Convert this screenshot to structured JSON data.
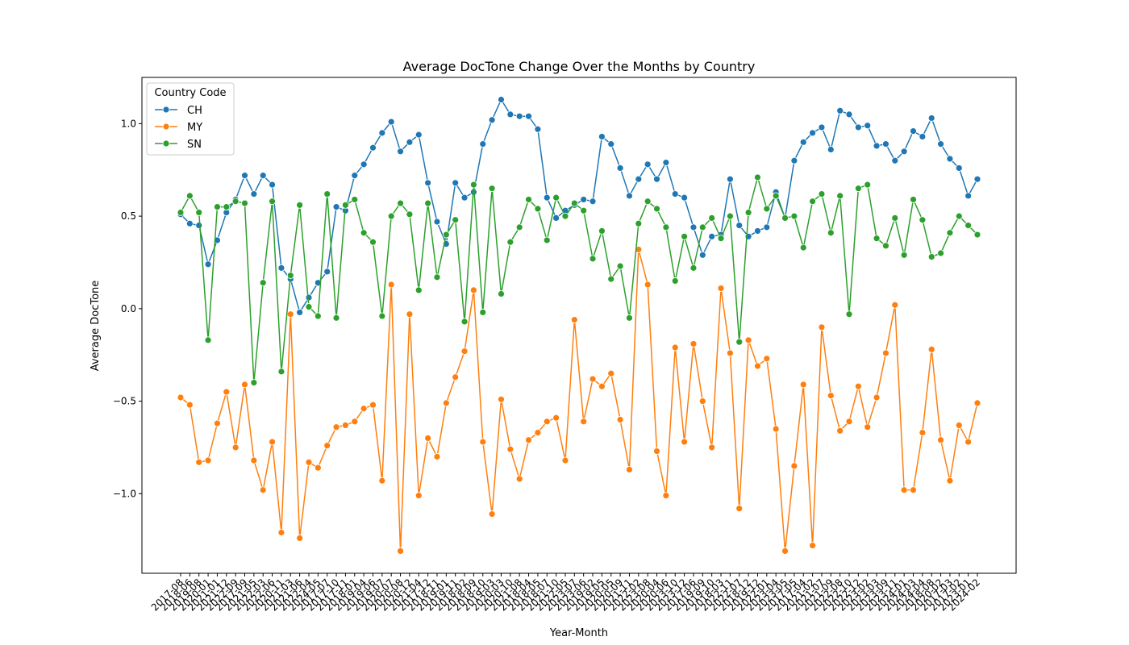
{
  "chart_data": {
    "type": "line",
    "title": "Average DocTone Change Over the Months by Country",
    "x_label": "Year-Month",
    "y_label": "Average DocTone",
    "legend_title": "Country Code",
    "legend": "upper left",
    "grid": false,
    "ylim": [
      -1.43,
      1.25
    ],
    "yticks": [
      {
        "value": -1.0,
        "label": "−1.0"
      },
      {
        "value": -0.5,
        "label": "−0.5"
      },
      {
        "value": 0,
        "label": "0.0"
      },
      0.5,
      {
        "value": 1.0,
        "label": "1.0"
      }
    ],
    "categories": [
      "2017-08",
      "2018-06",
      "2019-08",
      "2020-01",
      "2021-01",
      "2021-12",
      "2022-09",
      "2017-09",
      "2021-05",
      "2022-03",
      "2022-06",
      "2020-11",
      "2021-03",
      "2021-06",
      "2022-04",
      "2024-05",
      "2017-07",
      "2017-10",
      "2017-11",
      "2018-01",
      "2019-04",
      "2019-06",
      "2019-07",
      "2020-07",
      "2020-08",
      "2020-12",
      "2021-04",
      "2017-12",
      "2018-11",
      "2019-01",
      "2019-11",
      "2018-02",
      "2018-09",
      "2018-10",
      "2019-03",
      "2020-03",
      "2020-10",
      "2021-08",
      "2018-04",
      "2018-05",
      "2018-07",
      "2021-10",
      "2022-05",
      "2023-07",
      "2023-06",
      "2019-02",
      "2019-05",
      "2020-05",
      "2020-09",
      "2021-11",
      "2022-02",
      "2023-08",
      "2020-04",
      "2020-06",
      "2023-10",
      "2023-12",
      "2017-06",
      "2019-09",
      "2019-10",
      "2018-03",
      "2022-11",
      "2022-07",
      "2018-12",
      "2019-12",
      "2022-01",
      "2023-04",
      "2023-05",
      "2017-05",
      "2017-04",
      "2021-02",
      "2021-07",
      "2021-09",
      "2022-08",
      "2022-10",
      "2022-12",
      "2023-02",
      "2023-03",
      "2023-09",
      "2023-11",
      "2024-01",
      "2024-03",
      "2024-04",
      "2018-08",
      "2020-02",
      "2017-03",
      "2017-02",
      "2023-01",
      "2024-02"
    ],
    "series": [
      {
        "name": "CH",
        "color": "#1f77b4",
        "values": [
          0.51,
          0.46,
          0.45,
          0.24,
          0.37,
          0.52,
          0.59,
          0.72,
          0.62,
          0.72,
          0.67,
          0.22,
          0.16,
          -0.02,
          0.06,
          0.14,
          0.2,
          0.55,
          0.53,
          0.72,
          0.78,
          0.87,
          0.95,
          1.01,
          0.85,
          0.9,
          0.94,
          0.68,
          0.47,
          0.35,
          0.68,
          0.6,
          0.63,
          0.89,
          1.02,
          1.13,
          1.05,
          1.04,
          1.04,
          0.97,
          0.6,
          0.49,
          0.53,
          0.56,
          0.59,
          0.58,
          0.93,
          0.89,
          0.76,
          0.61,
          0.7,
          0.78,
          0.7,
          0.79,
          0.62,
          0.6,
          0.44,
          0.29,
          0.39,
          0.4,
          0.7,
          0.45,
          0.39,
          0.42,
          0.44,
          0.63,
          0.49,
          0.8,
          0.9,
          0.95,
          0.98,
          0.86,
          1.07,
          1.05,
          0.98,
          0.99,
          0.88,
          0.89,
          0.8,
          0.85,
          0.96,
          0.93,
          1.03,
          0.89,
          0.81,
          0.76,
          0.61,
          0.7
        ]
      },
      {
        "name": "MY",
        "color": "#ff7f0e",
        "values": [
          -0.48,
          -0.52,
          -0.83,
          -0.82,
          -0.62,
          -0.45,
          -0.75,
          -0.41,
          -0.82,
          -0.98,
          -0.72,
          -1.21,
          -0.03,
          -1.24,
          -0.83,
          -0.86,
          -0.74,
          -0.64,
          -0.63,
          -0.61,
          -0.54,
          -0.52,
          -0.93,
          0.13,
          -1.31,
          -0.03,
          -1.01,
          -0.7,
          -0.8,
          -0.51,
          -0.37,
          -0.23,
          0.1,
          -0.72,
          -1.11,
          -0.49,
          -0.76,
          -0.92,
          -0.71,
          -0.67,
          -0.61,
          -0.59,
          -0.82,
          -0.06,
          -0.61,
          -0.38,
          -0.42,
          -0.35,
          -0.6,
          -0.87,
          0.32,
          0.13,
          -0.77,
          -1.01,
          -0.21,
          -0.72,
          -0.19,
          -0.5,
          -0.75,
          0.11,
          -0.24,
          -1.08,
          -0.17,
          -0.31,
          -0.27,
          -0.65,
          -1.31,
          -0.85,
          -0.41,
          -1.28,
          -0.1,
          -0.47,
          -0.66,
          -0.61,
          -0.42,
          -0.64,
          -0.48,
          -0.24,
          0.02,
          -0.98,
          -0.98,
          -0.67,
          -0.22,
          -0.71,
          -0.93,
          -0.63,
          -0.72,
          -0.51
        ]
      },
      {
        "name": "SN",
        "color": "#2ca02c",
        "values": [
          0.52,
          0.61,
          0.52,
          -0.17,
          0.55,
          0.55,
          0.58,
          0.57,
          -0.4,
          0.14,
          0.58,
          -0.34,
          0.18,
          0.56,
          0.01,
          -0.04,
          0.62,
          -0.05,
          0.56,
          0.59,
          0.41,
          0.36,
          -0.04,
          0.5,
          0.57,
          0.51,
          0.1,
          0.57,
          0.17,
          0.4,
          0.48,
          -0.07,
          0.67,
          -0.02,
          0.65,
          0.08,
          0.36,
          0.44,
          0.59,
          0.54,
          0.37,
          0.6,
          0.5,
          0.57,
          0.53,
          0.27,
          0.42,
          0.16,
          0.23,
          -0.05,
          0.46,
          0.58,
          0.54,
          0.44,
          0.15,
          0.39,
          0.22,
          0.44,
          0.49,
          0.38,
          0.5,
          -0.18,
          0.52,
          0.71,
          0.54,
          0.61,
          0.49,
          0.5,
          0.33,
          0.58,
          0.62,
          0.41,
          0.61,
          -0.03,
          0.65,
          0.67,
          0.38,
          0.34,
          0.49,
          0.29,
          0.59,
          0.48,
          0.28,
          0.3,
          0.41,
          0.5,
          0.45,
          0.4
        ]
      }
    ]
  }
}
